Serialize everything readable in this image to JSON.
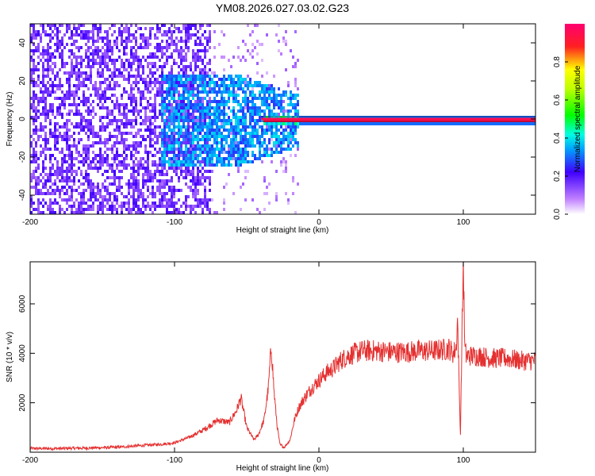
{
  "title": "YM08.2026.027.03.02.G23",
  "colors": {
    "snr_line": "#e53030",
    "frame": "#000000"
  },
  "chart_data": [
    {
      "type": "heatmap",
      "name": "spectrogram",
      "xlabel": "Height of straight line (km)",
      "ylabel": "Frequency (Hz)",
      "xlim": [
        -200,
        150
      ],
      "ylim": [
        -50,
        50
      ],
      "xticks": [
        -200,
        -100,
        0,
        100
      ],
      "yticks": [
        -40,
        -20,
        0,
        20,
        40
      ],
      "colorbar": {
        "label": "Normalized spectral amplitude",
        "range": [
          0,
          1
        ],
        "ticks": [
          "0.0",
          "0.2",
          "0.4",
          "0.6",
          "0.8"
        ],
        "colormap": "rainbow (white → violet → blue → cyan → green → yellow → red → magenta)"
      },
      "features": [
        {
          "description_x_range": [
            -200,
            -75
          ],
          "freq_range": [
            -50,
            50
          ],
          "amplitude": 0.1
        },
        {
          "description_x_range": [
            -110,
            -15
          ],
          "freq_range": [
            -25,
            25
          ],
          "amplitude": 0.25
        },
        {
          "description_x_range": [
            -40,
            150
          ],
          "freq_range": [
            -1.5,
            1.5
          ],
          "amplitude": 0.95
        }
      ]
    },
    {
      "type": "line",
      "name": "snr",
      "xlabel": "Height of straight line (km)",
      "ylabel": "SNR (10 * v/v)",
      "xlim": [
        -200,
        150
      ],
      "ylim": [
        0,
        7700
      ],
      "xticks": [
        -200,
        -100,
        0,
        100
      ],
      "yticks": [
        2000,
        4000,
        6000
      ],
      "series": [
        {
          "x": [
            -200,
            -180,
            -160,
            -140,
            -120,
            -110,
            -100,
            -90,
            -80,
            -75,
            -70,
            -62,
            -57,
            -54,
            -50,
            -45,
            -42,
            -38,
            -35,
            -33,
            -31,
            -29,
            -27,
            -24,
            -20,
            -17,
            -14,
            -10,
            -5,
            0,
            5,
            10,
            15,
            20,
            25,
            30,
            40,
            50,
            60,
            70,
            80,
            85,
            88,
            90,
            93,
            95,
            96,
            97,
            98,
            99,
            100,
            101,
            102,
            105,
            110,
            120,
            130,
            140,
            150
          ],
          "y": [
            150,
            150,
            170,
            200,
            280,
            320,
            380,
            600,
            900,
            1100,
            1300,
            1200,
            1700,
            2200,
            1000,
            500,
            700,
            1300,
            2600,
            4300,
            2400,
            1100,
            300,
            200,
            500,
            1300,
            1800,
            2200,
            2600,
            2900,
            3200,
            3400,
            3700,
            3900,
            4000,
            4100,
            4100,
            4050,
            4050,
            4100,
            4100,
            4150,
            4150,
            4200,
            4000,
            4200,
            5400,
            3000,
            700,
            4400,
            7700,
            4200,
            3900,
            3900,
            3900,
            3800,
            3800,
            3700,
            3700
          ]
        }
      ]
    }
  ]
}
